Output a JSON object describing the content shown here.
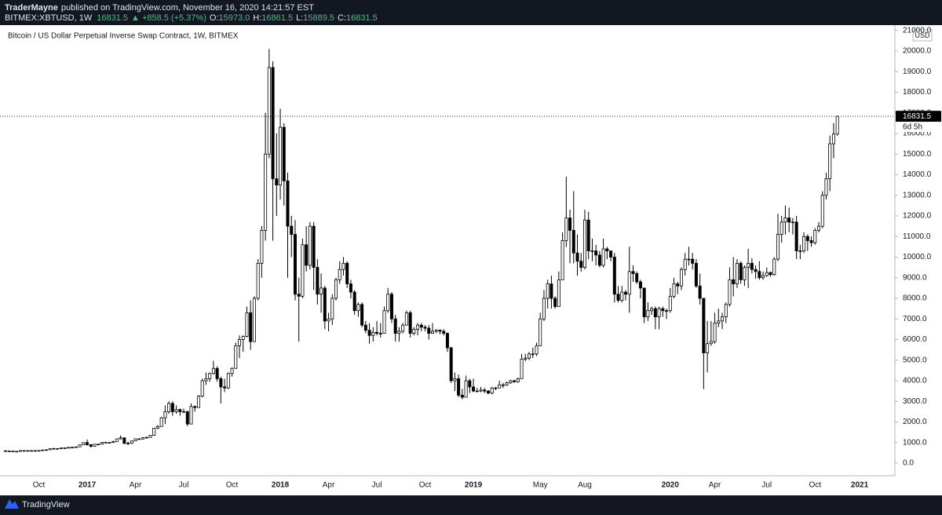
{
  "header": {
    "author": "TraderMayne",
    "published": "published on TradingView.com, November 16, 2020 14:21:57 EST",
    "symbol": "BITMEX:XBTUSD, 1W",
    "change": "▲ +858.5 (+5.37%)",
    "ohlc": [
      {
        "key": "O:",
        "value": "15973.0"
      },
      {
        "key": "H:",
        "value": "16861.5"
      },
      {
        "key": "L:",
        "value": "15889.5"
      },
      {
        "key": "C:",
        "value": "16831.5"
      }
    ]
  },
  "footer": {
    "brand": "TradingView"
  },
  "chart_data": {
    "type": "candlestick",
    "title": "Bitcoin / US Dollar Perpetual Inverse Swap Contract, 1W, BITMEX",
    "currency": "USD",
    "countdown": "6d 5h",
    "up_color": "#ffffff",
    "down_color": "#000000",
    "outline_color": "#000000",
    "grid": false,
    "categories": [
      null,
      null,
      null,
      null,
      null,
      null,
      null,
      null,
      null,
      "Oct",
      null,
      null,
      null,
      null,
      null,
      null,
      null,
      null,
      null,
      null,
      null,
      null,
      "2017",
      null,
      null,
      null,
      null,
      null,
      null,
      null,
      null,
      null,
      null,
      null,
      null,
      "Apr",
      null,
      null,
      null,
      null,
      null,
      null,
      null,
      null,
      null,
      null,
      null,
      null,
      "Jul",
      null,
      null,
      null,
      null,
      null,
      null,
      null,
      null,
      null,
      null,
      null,
      null,
      "Oct",
      null,
      null,
      null,
      null,
      null,
      null,
      null,
      null,
      null,
      null,
      null,
      null,
      "2018",
      null,
      null,
      null,
      null,
      null,
      null,
      null,
      null,
      null,
      null,
      null,
      null,
      "Apr",
      null,
      null,
      null,
      null,
      null,
      null,
      null,
      null,
      null,
      null,
      null,
      null,
      "Jul",
      null,
      null,
      null,
      null,
      null,
      null,
      null,
      null,
      null,
      null,
      null,
      null,
      "Oct",
      null,
      null,
      null,
      null,
      null,
      null,
      null,
      null,
      null,
      null,
      null,
      null,
      "2019",
      null,
      null,
      null,
      null,
      null,
      null,
      null,
      null,
      null,
      null,
      null,
      null,
      null,
      null,
      null,
      null,
      null,
      "May",
      null,
      null,
      null,
      null,
      null,
      null,
      null,
      null,
      null,
      null,
      null,
      "Aug",
      null,
      null,
      null,
      null,
      null,
      null,
      null,
      null,
      null,
      null,
      null,
      null,
      null,
      null,
      null,
      null,
      null,
      null,
      null,
      null,
      null,
      null,
      "2020",
      null,
      null,
      null,
      null,
      null,
      null,
      null,
      null,
      null,
      null,
      null,
      "Apr",
      null,
      null,
      null,
      null,
      null,
      null,
      null,
      null,
      null,
      null,
      null,
      null,
      null,
      "Jul",
      null,
      null,
      null,
      null,
      null,
      null,
      null,
      null,
      null,
      null,
      null,
      null,
      "Oct",
      null,
      null,
      null,
      null,
      null,
      null,
      null,
      null,
      null,
      null,
      null,
      "2021",
      null,
      null,
      null,
      null,
      null,
      null,
      null,
      null,
      null
    ],
    "open": [
      600,
      590,
      585,
      575,
      575,
      610,
      605,
      610,
      605,
      610,
      615,
      640,
      650,
      700,
      710,
      705,
      740,
      730,
      770,
      770,
      790,
      890,
      1000,
      900,
      820,
      920,
      920,
      1010,
      1000,
      1000,
      1050,
      1180,
      1230,
      960,
      970,
      1080,
      1180,
      1170,
      1240,
      1250,
      1350,
      1700,
      1780,
      2200,
      2500,
      2900,
      2500,
      2600,
      2500,
      2500,
      1900,
      2750,
      2700,
      3250,
      4000,
      4100,
      4350,
      4600,
      4100,
      3700,
      3650,
      4350,
      4600,
      5700,
      6000,
      6150,
      7300,
      5900,
      8000,
      9700,
      11300,
      15000,
      19200,
      13800,
      13500,
      16300,
      13700,
      11500,
      11100,
      8200,
      8100,
      10600,
      9600,
      11500,
      9500,
      8200,
      8500,
      6900,
      7000,
      8000,
      8900,
      9400,
      9700,
      8700,
      8300,
      7400,
      7700,
      6700,
      6450,
      6200,
      6350,
      6300,
      6300,
      7400,
      8200,
      7000,
      6300,
      6400,
      6700,
      7300,
      6300,
      6500,
      6700,
      6600,
      6550,
      6300,
      6400,
      6450,
      6400,
      6300,
      5600,
      4000,
      4100,
      3300,
      3200,
      4000,
      3700,
      3500,
      3500,
      3550,
      3500,
      3400,
      3650,
      3650,
      3800,
      3800,
      3900,
      4000,
      3950,
      4100,
      5050,
      5100,
      5300,
      5300,
      5700,
      7000,
      8000,
      8700,
      8000,
      7600,
      8900,
      10800,
      11900,
      11300,
      10200,
      9800,
      9500,
      11800,
      10300,
      10300,
      10100,
      9600,
      10400,
      10300,
      10000,
      8200,
      7900,
      8300,
      8200,
      9300,
      9200,
      8800,
      8500,
      7100,
      7400,
      7500,
      7100,
      7500,
      7400,
      7400,
      8100,
      8700,
      8600,
      9400,
      9900,
      9900,
      9700,
      8600,
      8000,
      5350,
      5800,
      5900,
      6800,
      6900,
      7100,
      7700,
      8900,
      8700,
      9700,
      8900,
      9500,
      9700,
      9400,
      9300,
      9000,
      9100,
      9250,
      9150,
      9900,
      11100,
      11700,
      11900,
      11700,
      11700,
      10300,
      10300,
      11000,
      10800,
      10700,
      11300,
      11500,
      13000,
      13800,
      15500,
      15973,
      null,
      null,
      null,
      null,
      null,
      null,
      null,
      null,
      null,
      null,
      null,
      null,
      null,
      null,
      null
    ],
    "high": [
      615,
      600,
      595,
      590,
      615,
      620,
      615,
      615,
      620,
      625,
      645,
      660,
      720,
      740,
      720,
      750,
      760,
      780,
      790,
      800,
      900,
      1010,
      1150,
      920,
      930,
      950,
      1020,
      1040,
      1030,
      1090,
      1200,
      1350,
      1250,
      1050,
      1090,
      1200,
      1210,
      1260,
      1290,
      1360,
      1720,
      1850,
      2250,
      2800,
      3000,
      3000,
      2800,
      2650,
      2650,
      2550,
      2900,
      2800,
      3300,
      4100,
      4400,
      4400,
      4970,
      4700,
      4200,
      4100,
      4400,
      4650,
      5850,
      6200,
      6200,
      7600,
      7900,
      8100,
      9900,
      11500,
      17000,
      20100,
      19500,
      16000,
      17200,
      16500,
      14100,
      12000,
      11800,
      9000,
      10900,
      11500,
      11700,
      11700,
      9900,
      9200,
      8600,
      7300,
      8200,
      9000,
      9800,
      10000,
      9800,
      8900,
      8400,
      7800,
      7800,
      6900,
      6800,
      6600,
      6900,
      6800,
      7600,
      8500,
      8300,
      7200,
      6600,
      6800,
      7400,
      7400,
      6600,
      6800,
      6800,
      6700,
      6700,
      6800,
      6500,
      6500,
      6500,
      6350,
      5650,
      4400,
      4300,
      3600,
      4250,
      4100,
      4100,
      3650,
      3700,
      3650,
      3550,
      3700,
      3700,
      4000,
      3900,
      3950,
      4050,
      4050,
      4150,
      5300,
      5300,
      5400,
      5600,
      5850,
      7300,
      8400,
      8900,
      9100,
      8100,
      9300,
      11200,
      13900,
      12300,
      13200,
      11100,
      10200,
      12300,
      12200,
      10900,
      10600,
      10300,
      10900,
      10500,
      10300,
      10200,
      8600,
      8600,
      8400,
      10500,
      9600,
      9300,
      8900,
      8500,
      7800,
      7600,
      7600,
      7600,
      7600,
      7500,
      8500,
      9000,
      8800,
      9500,
      10200,
      10500,
      10200,
      9900,
      9200,
      8000,
      6900,
      6900,
      7300,
      7500,
      7300,
      7800,
      9500,
      10000,
      9900,
      9800,
      9600,
      10400,
      9950,
      9600,
      9800,
      9300,
      9500,
      9300,
      10000,
      12100,
      12000,
      12500,
      12400,
      11900,
      12000,
      10600,
      11200,
      11100,
      11000,
      11400,
      11700,
      13200,
      14100,
      15900,
      16500,
      16861.5,
      null,
      null,
      null,
      null,
      null,
      null,
      null,
      null,
      null,
      null,
      null,
      null,
      null,
      null,
      null
    ],
    "low": [
      560,
      570,
      565,
      565,
      570,
      600,
      600,
      595,
      600,
      605,
      610,
      635,
      645,
      680,
      690,
      700,
      720,
      725,
      750,
      760,
      785,
      880,
      850,
      760,
      810,
      880,
      910,
      980,
      970,
      990,
      1040,
      1150,
      930,
      890,
      940,
      1070,
      1150,
      1160,
      1230,
      1240,
      1340,
      1650,
      1770,
      1900,
      2400,
      2300,
      2400,
      2300,
      2450,
      1800,
      1900,
      2500,
      2700,
      3200,
      3800,
      3950,
      4300,
      3950,
      2900,
      3450,
      3600,
      4200,
      4600,
      5100,
      5400,
      6100,
      5500,
      5900,
      7900,
      9000,
      10800,
      14800,
      10800,
      12000,
      12800,
      12500,
      9000,
      10000,
      7900,
      5900,
      8000,
      9300,
      9400,
      8400,
      7700,
      7300,
      6500,
      6400,
      6700,
      7900,
      8700,
      9100,
      8500,
      8000,
      7200,
      7100,
      6600,
      6300,
      5800,
      5900,
      6200,
      6100,
      6300,
      7300,
      6800,
      5900,
      5900,
      6300,
      6700,
      6100,
      6200,
      6200,
      6400,
      6400,
      6000,
      6300,
      6300,
      6250,
      6200,
      5400,
      3900,
      3500,
      3200,
      3100,
      3200,
      3400,
      3450,
      3450,
      3450,
      3400,
      3350,
      3350,
      3550,
      3650,
      3650,
      3750,
      3850,
      3900,
      3900,
      4100,
      4950,
      5000,
      5100,
      5200,
      5700,
      6900,
      7500,
      7500,
      7500,
      7600,
      8900,
      10500,
      9700,
      9700,
      9100,
      9300,
      9400,
      9900,
      9800,
      9600,
      9500,
      9500,
      9900,
      9800,
      7800,
      7800,
      7800,
      7900,
      7300,
      8800,
      8700,
      8000,
      6800,
      6900,
      7200,
      6500,
      6500,
      7100,
      7000,
      7300,
      8000,
      8200,
      8400,
      9100,
      9600,
      9400,
      8500,
      7700,
      3600,
      4400,
      5700,
      5800,
      6600,
      6500,
      6800,
      7600,
      8100,
      8500,
      8700,
      8600,
      8500,
      9200,
      8950,
      8900,
      8900,
      9050,
      9050,
      9100,
      9800,
      10700,
      11100,
      11200,
      11100,
      9900,
      9900,
      10200,
      10300,
      10500,
      10600,
      11200,
      11400,
      12800,
      13200,
      14800,
      15889.5,
      null,
      null,
      null,
      null,
      null,
      null,
      null,
      null,
      null,
      null,
      null,
      null,
      null,
      null,
      null
    ],
    "close": [
      590,
      585,
      575,
      575,
      610,
      605,
      610,
      605,
      610,
      615,
      640,
      650,
      700,
      710,
      705,
      740,
      730,
      770,
      770,
      790,
      890,
      1000,
      900,
      820,
      920,
      920,
      1010,
      1000,
      1000,
      1050,
      1180,
      1230,
      960,
      970,
      1080,
      1180,
      1170,
      1240,
      1250,
      1350,
      1700,
      1780,
      2200,
      2500,
      2900,
      2500,
      2600,
      2500,
      2500,
      1900,
      2750,
      2700,
      3250,
      4000,
      4100,
      4350,
      4600,
      4100,
      3700,
      3650,
      4350,
      4600,
      5700,
      6000,
      6150,
      7300,
      5900,
      8000,
      9700,
      11300,
      15000,
      19200,
      13800,
      13500,
      16300,
      13700,
      11500,
      11100,
      8200,
      8100,
      10600,
      9600,
      11500,
      9500,
      8200,
      8500,
      6900,
      7000,
      8000,
      8900,
      9400,
      9700,
      8700,
      8300,
      7400,
      7700,
      6700,
      6450,
      6200,
      6350,
      6300,
      6300,
      7400,
      8200,
      7000,
      6300,
      6400,
      6700,
      7300,
      6300,
      6500,
      6700,
      6600,
      6550,
      6300,
      6400,
      6450,
      6400,
      6300,
      5600,
      4000,
      4100,
      3300,
      3200,
      4000,
      3700,
      3500,
      3500,
      3550,
      3500,
      3400,
      3650,
      3650,
      3800,
      3800,
      3900,
      4000,
      3950,
      4100,
      5050,
      5100,
      5300,
      5300,
      5700,
      7000,
      8000,
      8700,
      8000,
      7600,
      8900,
      10800,
      11900,
      11300,
      10200,
      9800,
      9500,
      11800,
      10300,
      10300,
      10100,
      9600,
      10400,
      10300,
      10000,
      8200,
      7900,
      8300,
      8200,
      9300,
      9200,
      8800,
      8500,
      7100,
      7400,
      7500,
      7100,
      7500,
      7400,
      7400,
      8100,
      8700,
      8600,
      9400,
      9900,
      9900,
      9700,
      8600,
      8000,
      5350,
      5800,
      5900,
      6800,
      6900,
      7100,
      7700,
      8900,
      8700,
      9700,
      8900,
      9500,
      9700,
      9400,
      9300,
      9000,
      9100,
      9250,
      9150,
      9900,
      11100,
      11700,
      11900,
      11700,
      11700,
      10300,
      10300,
      11000,
      10800,
      10700,
      11300,
      11500,
      13000,
      13800,
      15500,
      15973,
      16831.5,
      null,
      null,
      null,
      null,
      null,
      null,
      null,
      null,
      null,
      null,
      null,
      null,
      null,
      null,
      null
    ],
    "ylim": [
      -610,
      21257
    ],
    "yticks": [
      {
        "value": 0,
        "label": "0.0"
      },
      {
        "value": 1000,
        "label": "1000.0"
      },
      {
        "value": 2000,
        "label": "2000.0"
      },
      {
        "value": 3000,
        "label": "3000.0"
      },
      {
        "value": 4000,
        "label": "4000.0"
      },
      {
        "value": 5000,
        "label": "5000.0"
      },
      {
        "value": 6000,
        "label": "6000.0"
      },
      {
        "value": 7000,
        "label": "7000.0"
      },
      {
        "value": 8000,
        "label": "8000.0"
      },
      {
        "value": 9000,
        "label": "9000.0"
      },
      {
        "value": 10000,
        "label": "10000.0"
      },
      {
        "value": 11000,
        "label": "11000.0"
      },
      {
        "value": 12000,
        "label": "12000.0"
      },
      {
        "value": 13000,
        "label": "13000.0"
      },
      {
        "value": 14000,
        "label": "14000.0"
      },
      {
        "value": 15000,
        "label": "15000.0"
      },
      {
        "value": 16000,
        "label": "16000.0"
      },
      {
        "value": 17000,
        "label": "17000.0"
      },
      {
        "value": 18000,
        "label": "18000.0"
      },
      {
        "value": 19000,
        "label": "19000.0"
      },
      {
        "value": 20000,
        "label": "20000.0"
      },
      {
        "value": 21000,
        "label": "21000.0"
      }
    ]
  }
}
